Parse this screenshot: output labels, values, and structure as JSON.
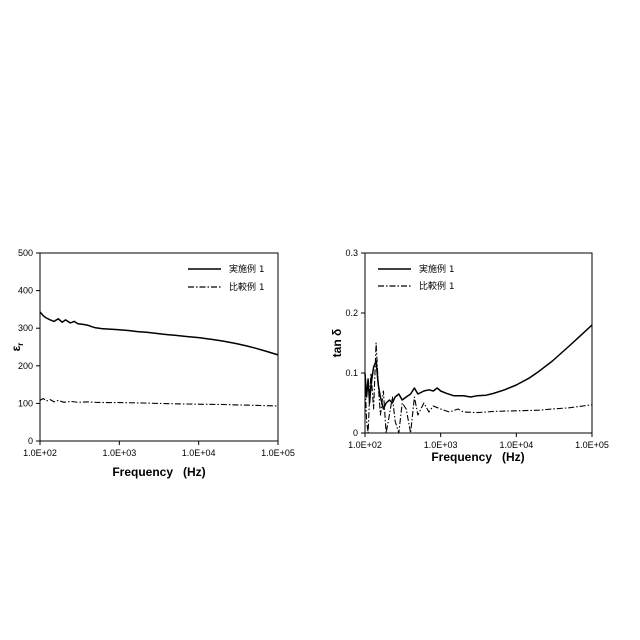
{
  "chart_data": [
    {
      "type": "line",
      "xscale": "log",
      "xlim": [
        100,
        100000
      ],
      "ylim": [
        0,
        500
      ],
      "xticks": [
        100,
        1000,
        10000,
        100000
      ],
      "xtick_labels": [
        "1.0E+02",
        "1.0E+03",
        "1.0E+04",
        "1.0E+05"
      ],
      "yticks": [
        0,
        100,
        200,
        300,
        400,
        500
      ],
      "ytick_labels": [
        "0",
        "100",
        "200",
        "300",
        "400",
        "500"
      ],
      "xlabel": "Frequency   (Hz)",
      "ylabel": "εr",
      "ylabel_main": "ε",
      "ylabel_sub": "r",
      "grid": false,
      "legend_position": "top-right",
      "series": [
        {
          "name": "実施例 1",
          "style": "solid",
          "x": [
            100,
            110,
            120,
            135,
            150,
            170,
            190,
            210,
            240,
            270,
            300,
            350,
            400,
            450,
            500,
            600,
            700,
            800,
            1000,
            1300,
            1700,
            2200,
            3000,
            4000,
            5000,
            7000,
            10000,
            15000,
            20000,
            30000,
            40000,
            50000,
            70000,
            100000
          ],
          "y": [
            343,
            333,
            327,
            322,
            318,
            325,
            316,
            322,
            314,
            318,
            312,
            310,
            308,
            304,
            301,
            299,
            298,
            297,
            296,
            294,
            291,
            289,
            286,
            283,
            281,
            278,
            275,
            270,
            266,
            259,
            253,
            248,
            239,
            229
          ]
        },
        {
          "name": "比較例 1",
          "style": "dash-dot",
          "x": [
            100,
            110,
            120,
            135,
            150,
            170,
            200,
            250,
            300,
            400,
            500,
            700,
            1000,
            2000,
            3000,
            5000,
            10000,
            20000,
            30000,
            50000,
            100000
          ],
          "y": [
            108,
            113,
            106,
            110,
            104,
            108,
            103,
            105,
            103,
            104,
            103,
            102,
            102,
            101,
            100,
            99,
            98,
            97,
            96,
            95,
            93
          ]
        }
      ]
    },
    {
      "type": "line",
      "xscale": "log",
      "xlim": [
        100,
        100000
      ],
      "ylim": [
        0,
        0.3
      ],
      "xticks": [
        100,
        1000,
        10000,
        100000
      ],
      "xtick_labels": [
        "1.0E+02",
        "1.0E+03",
        "1.0E+04",
        "1.0E+05"
      ],
      "yticks": [
        0,
        0.1,
        0.2,
        0.3
      ],
      "ytick_labels": [
        "0",
        "0.1",
        "0.2",
        "0.3"
      ],
      "xlabel": "Frequency   (Hz)",
      "ylabel": "tan δ",
      "grid": false,
      "legend_position": "top-left",
      "series": [
        {
          "name": "実施例 1",
          "style": "solid",
          "x": [
            100,
            105,
            110,
            115,
            120,
            130,
            140,
            150,
            160,
            175,
            190,
            210,
            230,
            250,
            280,
            310,
            350,
            400,
            450,
            500,
            600,
            700,
            800,
            900,
            1000,
            1200,
            1500,
            2000,
            2500,
            3000,
            4000,
            5000,
            7000,
            10000,
            15000,
            20000,
            30000,
            50000,
            70000,
            100000
          ],
          "y": [
            0.1,
            0.06,
            0.09,
            0.05,
            0.08,
            0.11,
            0.12,
            0.08,
            0.06,
            0.04,
            0.05,
            0.055,
            0.05,
            0.06,
            0.065,
            0.055,
            0.06,
            0.065,
            0.075,
            0.065,
            0.07,
            0.072,
            0.07,
            0.075,
            0.07,
            0.066,
            0.062,
            0.062,
            0.06,
            0.062,
            0.063,
            0.066,
            0.072,
            0.08,
            0.092,
            0.103,
            0.12,
            0.145,
            0.162,
            0.18
          ]
        },
        {
          "name": "比較例 1",
          "style": "dash-dot",
          "x": [
            100,
            105,
            110,
            115,
            120,
            130,
            140,
            150,
            160,
            175,
            190,
            210,
            230,
            250,
            280,
            310,
            350,
            400,
            450,
            500,
            600,
            700,
            800,
            1000,
            1300,
            1700,
            2000,
            3000,
            4000,
            5000,
            10000,
            20000,
            30000,
            50000,
            100000
          ],
          "y": [
            0.09,
            0.02,
            0.0,
            0.06,
            0.1,
            0.04,
            0.15,
            0.08,
            0.03,
            0.07,
            0.0,
            0.03,
            0.06,
            0.02,
            0.0,
            0.05,
            0.04,
            0.0,
            0.06,
            0.03,
            0.05,
            0.035,
            0.045,
            0.04,
            0.035,
            0.04,
            0.035,
            0.034,
            0.035,
            0.036,
            0.037,
            0.038,
            0.04,
            0.042,
            0.047
          ]
        }
      ]
    }
  ]
}
